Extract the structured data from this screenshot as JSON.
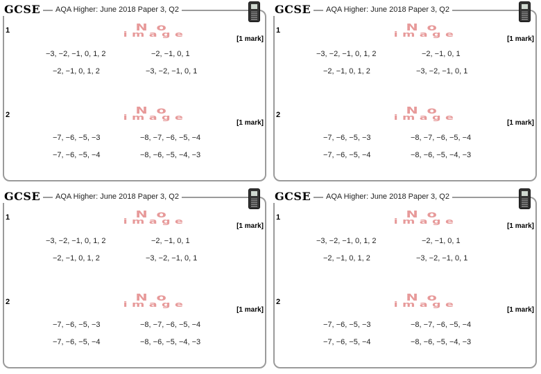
{
  "panel": {
    "brand": "GCSE",
    "title": "AQA Higher: June 2018 Paper 3, Q2",
    "calculator_icon": "calculator-icon",
    "q1": {
      "number": "1",
      "image_line1": "No",
      "image_line2": "image",
      "mark": "[1 mark]",
      "options": [
        "−3, −2, −1, 0, 1, 2",
        "−2, −1, 0, 1",
        "−2, −1, 0, 1, 2",
        "−3, −2, −1, 0, 1"
      ]
    },
    "q2": {
      "number": "2",
      "image_line1": "No",
      "image_line2": "image",
      "mark": "[1 mark]",
      "options": [
        "−7, −6, −5, −3",
        "−8, −7, −6, −5, −4",
        "−7, −6, −5, −4",
        "−8, −6, −5, −4, −3"
      ]
    }
  }
}
